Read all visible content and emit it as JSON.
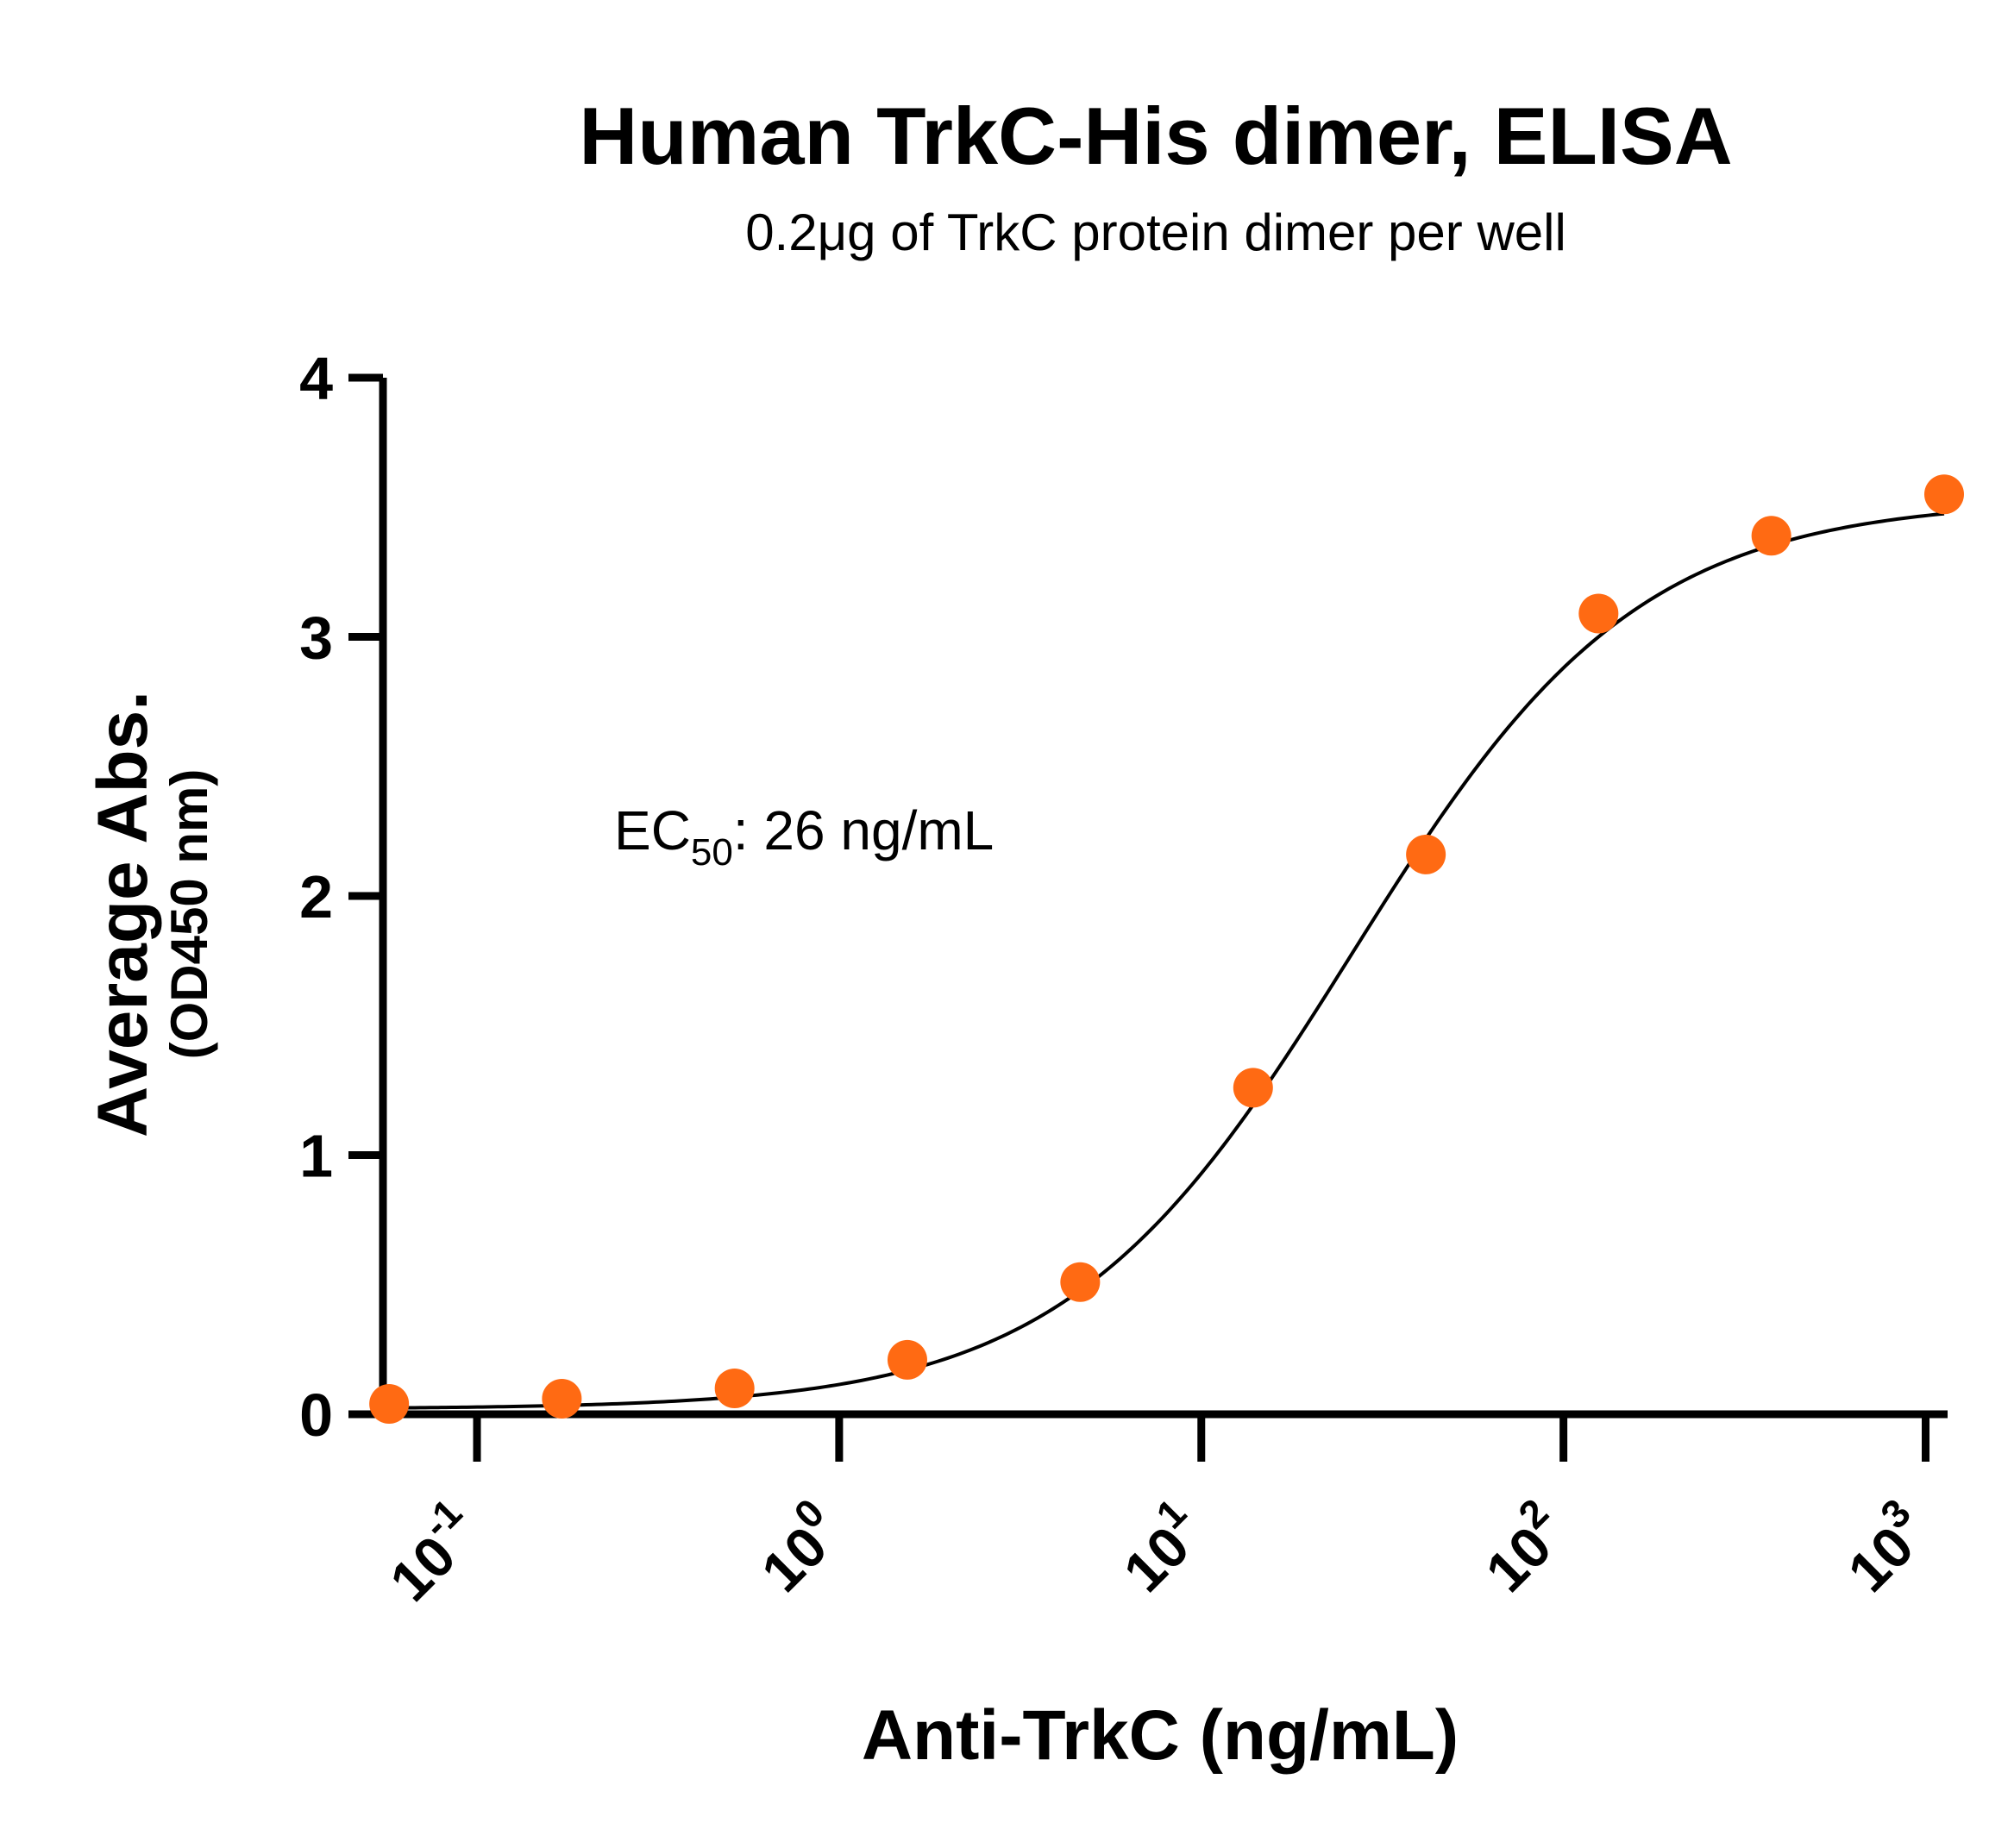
{
  "chart_data": {
    "type": "scatter",
    "title": "Human TrkC-His dimer, ELISA",
    "subtitle": "0.2μg of TrkC protein dimer per well",
    "xlabel": "Anti-TrkC  (ng/mL)",
    "ylabel": "Average Abs.",
    "ylabel_sub": "(OD450 nm)",
    "x_scale": "log10",
    "xlim": [
      0.055,
      1150
    ],
    "ylim": [
      0,
      4
    ],
    "x_ticks": [
      {
        "base": "10",
        "exp": "-1",
        "value": 0.1
      },
      {
        "base": "10",
        "exp": "0",
        "value": 1
      },
      {
        "base": "10",
        "exp": "1",
        "value": 10
      },
      {
        "base": "10",
        "exp": "2",
        "value": 100
      },
      {
        "base": "10",
        "exp": "3",
        "value": 1000
      }
    ],
    "y_ticks": [
      "0",
      "1",
      "2",
      "3",
      "4"
    ],
    "annotation": {
      "prefix": "EC",
      "sub": "50",
      "suffix": ": 26 ng/mL"
    },
    "series": [
      {
        "color": "#ff6a13",
        "marker": "circle",
        "x": [
          0.0572,
          0.1715,
          0.5144,
          1.543,
          4.63,
          13.9,
          41.7,
          125,
          375,
          1125
        ],
        "y": [
          0.04,
          0.06,
          0.1,
          0.21,
          0.51,
          1.26,
          2.16,
          3.09,
          3.39,
          3.55
        ]
      }
    ],
    "fit": {
      "type": "4PL",
      "bottom": 0.02,
      "top": 3.53,
      "ec50": 26,
      "hill": 1.1,
      "color": "#000000"
    },
    "grid": false,
    "legend": "none"
  }
}
